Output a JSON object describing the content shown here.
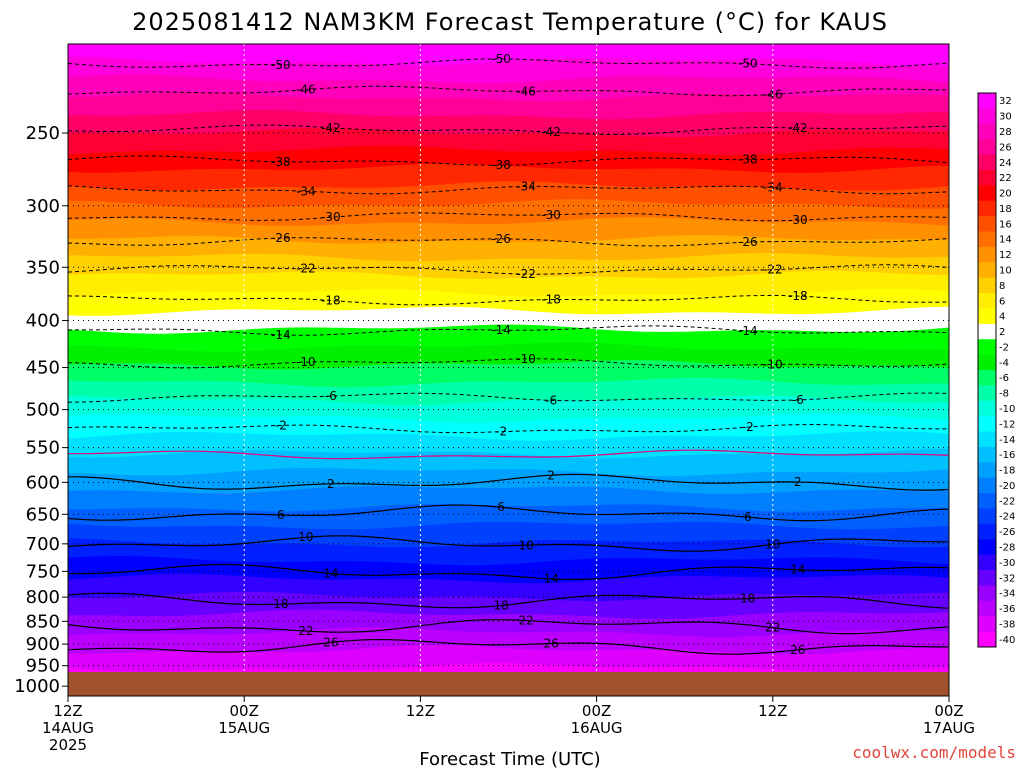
{
  "title": "2025081412 NAM3KM Forecast Temperature (°C) for KAUS",
  "credit": "coolwx.com/models",
  "chart_data": {
    "type": "heatmap",
    "title": "2025081412 NAM3KM Forecast Temperature (°C) for KAUS",
    "xlabel": "Forecast Time (UTC)",
    "ylabel": "",
    "x_range_hours": [
      0,
      60
    ],
    "y_range_hpa": [
      1025,
      200
    ],
    "x_ticks": [
      {
        "hour": 0,
        "lines": [
          "12Z",
          "14AUG",
          "2025"
        ]
      },
      {
        "hour": 12,
        "lines": [
          "00Z",
          "15AUG"
        ]
      },
      {
        "hour": 24,
        "lines": [
          "12Z"
        ]
      },
      {
        "hour": 36,
        "lines": [
          "00Z",
          "16AUG"
        ]
      },
      {
        "hour": 48,
        "lines": [
          "12Z"
        ]
      },
      {
        "hour": 60,
        "lines": [
          "00Z",
          "17AUG"
        ]
      }
    ],
    "y_ticks": [
      "250",
      "300",
      "350",
      "400",
      "450",
      "500",
      "550",
      "600",
      "650",
      "700",
      "750",
      "800",
      "850",
      "900",
      "950",
      "1000"
    ],
    "y_tick_values": [
      250,
      300,
      350,
      400,
      450,
      500,
      550,
      600,
      650,
      700,
      750,
      800,
      850,
      900,
      950,
      1000
    ],
    "colorbar_labels": [
      "32",
      "30",
      "28",
      "26",
      "24",
      "22",
      "20",
      "18",
      "16",
      "14",
      "12",
      "10",
      "8",
      "6",
      "4",
      "2",
      "-2",
      "-4",
      "-6",
      "-8",
      "-10",
      "-12",
      "-14",
      "-16",
      "-18",
      "-20",
      "-22",
      "-24",
      "-26",
      "-28",
      "-30",
      "-32",
      "-34",
      "-36",
      "-38",
      "-40"
    ],
    "colorbar_colors": [
      "#ff00ff",
      "#ff00dd",
      "#ff00bb",
      "#ff0099",
      "#ff0066",
      "#ff0033",
      "#ff0000",
      "#ff2800",
      "#ff5000",
      "#ff7000",
      "#ff9000",
      "#ffb000",
      "#ffd000",
      "#ffee00",
      "#ffff00",
      "#ffffff",
      "#00ff00",
      "#00f000",
      "#00ff66",
      "#00ffaa",
      "#00ffdd",
      "#00ffff",
      "#00e0ff",
      "#00c0ff",
      "#00a0ff",
      "#0080ff",
      "#0060ff",
      "#0040ff",
      "#0020ff",
      "#0000ff",
      "#3300ff",
      "#6600ff",
      "#9900ff",
      "#bb00ff",
      "#dd00ff",
      "#ff00ff"
    ],
    "contour_levels": [
      {
        "label": "-50",
        "pressure": 210,
        "style": "dashed"
      },
      {
        "label": "-46",
        "pressure": 225,
        "style": "dashed"
      },
      {
        "label": "-42",
        "pressure": 248,
        "style": "dashed"
      },
      {
        "label": "-38",
        "pressure": 268,
        "style": "dashed"
      },
      {
        "label": "-34",
        "pressure": 288,
        "style": "dashed"
      },
      {
        "label": "-30",
        "pressure": 308,
        "style": "dashed"
      },
      {
        "label": "-26",
        "pressure": 328,
        "style": "dashed"
      },
      {
        "label": "-22",
        "pressure": 352,
        "style": "dashed"
      },
      {
        "label": "-18",
        "pressure": 380,
        "style": "dashed"
      },
      {
        "label": "-14",
        "pressure": 410,
        "style": "dashed"
      },
      {
        "label": "-10",
        "pressure": 445,
        "style": "dashed"
      },
      {
        "label": "-6",
        "pressure": 485,
        "style": "dashed"
      },
      {
        "label": "-2",
        "pressure": 525,
        "style": "dashed"
      },
      {
        "label": "",
        "pressure": 560,
        "style": "freezing"
      },
      {
        "label": "2",
        "pressure": 600,
        "style": "solid"
      },
      {
        "label": "6",
        "pressure": 648,
        "style": "solid"
      },
      {
        "label": "10",
        "pressure": 700,
        "style": "solid"
      },
      {
        "label": "14",
        "pressure": 752,
        "style": "solid"
      },
      {
        "label": "18",
        "pressure": 808,
        "style": "solid"
      },
      {
        "label": "22",
        "pressure": 860,
        "style": "solid"
      },
      {
        "label": "26",
        "pressure": 905,
        "style": "solid"
      }
    ]
  }
}
